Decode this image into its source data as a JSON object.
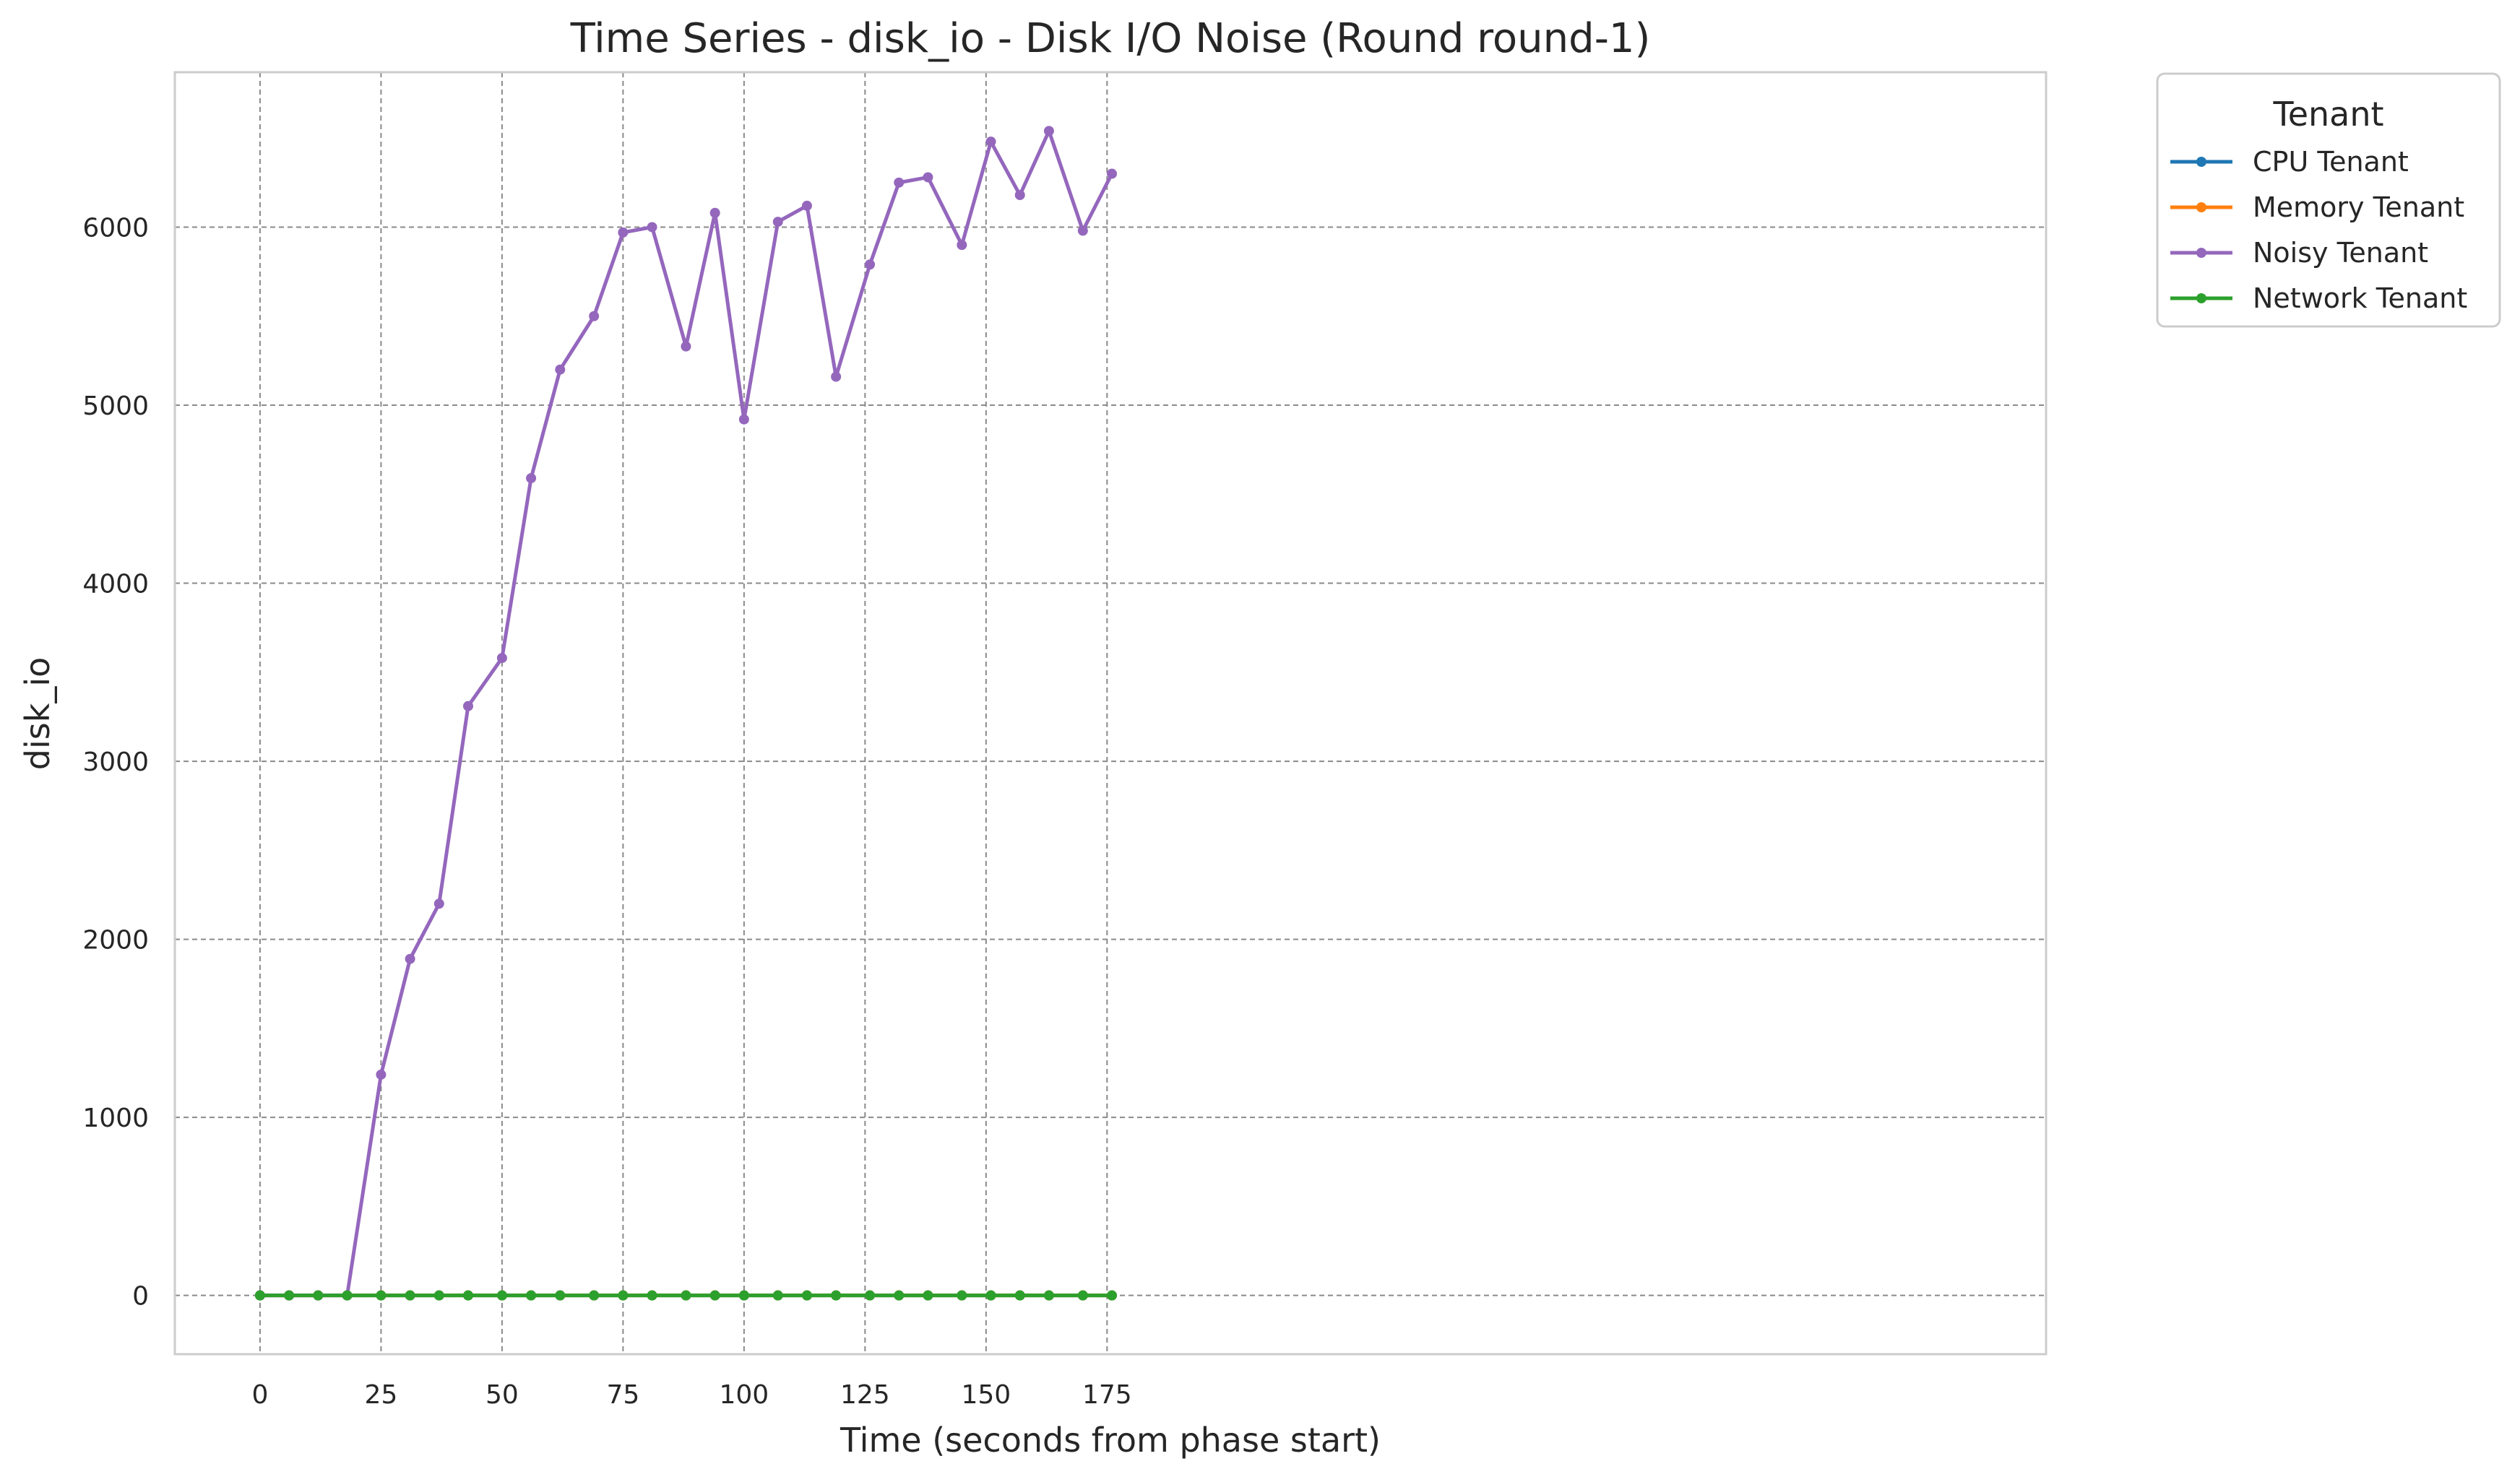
{
  "chart_data": {
    "type": "line",
    "title": "Time Series - disk_io - Disk I/O Noise (Round round-1)",
    "xlabel": "Time (seconds from phase start)",
    "ylabel": "disk_io",
    "xlim": [
      -17.6,
      369
    ],
    "ylim": [
      -330,
      6870
    ],
    "xticks": [
      0,
      25,
      50,
      75,
      100,
      125,
      150,
      175
    ],
    "yticks": [
      0,
      1000,
      2000,
      3000,
      4000,
      5000,
      6000
    ],
    "grid": true,
    "legend": {
      "title": "Tenant",
      "placement": "outside-top-right"
    },
    "x": [
      0,
      6,
      12,
      18,
      25,
      31,
      37,
      43,
      50,
      56,
      62,
      69,
      75,
      81,
      88,
      94,
      100,
      107,
      113,
      119,
      126,
      132,
      138,
      145,
      151,
      157,
      163,
      170,
      176
    ],
    "series": [
      {
        "name": "CPU Tenant",
        "color": "#1f77b4",
        "values": [
          0,
          0,
          0,
          0,
          0,
          0,
          0,
          0,
          0,
          0,
          0,
          0,
          0,
          0,
          0,
          0,
          0,
          0,
          0,
          0,
          0,
          0,
          0,
          0,
          0,
          0,
          0,
          0,
          0
        ]
      },
      {
        "name": "Memory Tenant",
        "color": "#ff7f0e",
        "values": [
          0,
          0,
          0,
          0,
          0,
          0,
          0,
          0,
          0,
          0,
          0,
          0,
          0,
          0,
          0,
          0,
          0,
          0,
          0,
          0,
          0,
          0,
          0,
          0,
          0,
          0,
          0,
          0,
          0
        ]
      },
      {
        "name": "Noisy Tenant",
        "color": "#9467bd",
        "values": [
          0,
          0,
          0,
          0,
          1240,
          1890,
          2200,
          3310,
          3580,
          4590,
          5200,
          5500,
          5970,
          6000,
          5330,
          6080,
          4920,
          6030,
          6120,
          5160,
          5790,
          6250,
          6280,
          5900,
          6480,
          6180,
          6540,
          5980,
          6300
        ]
      },
      {
        "name": "Network Tenant",
        "color": "#2ca02c",
        "values": [
          0,
          0,
          0,
          0,
          0,
          0,
          0,
          0,
          0,
          0,
          0,
          0,
          0,
          0,
          0,
          0,
          0,
          0,
          0,
          0,
          0,
          0,
          0,
          0,
          0,
          0,
          0,
          0,
          0
        ]
      }
    ]
  }
}
